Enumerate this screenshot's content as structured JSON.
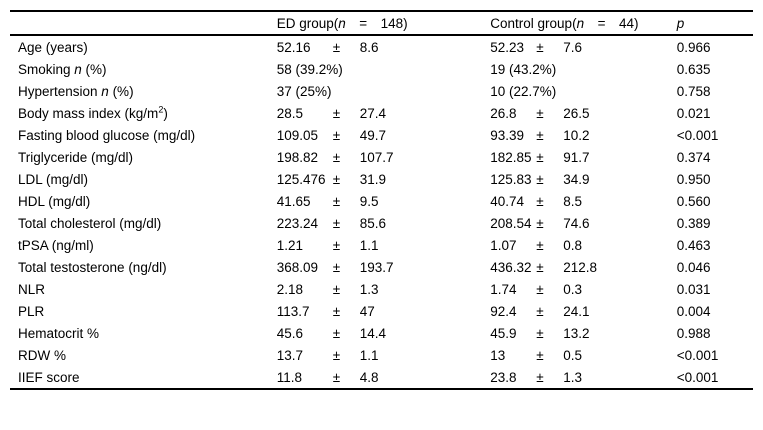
{
  "table": {
    "plus_minus": "±",
    "header": {
      "label": "",
      "ed": {
        "pre": "ED group(",
        "n": "n",
        "post": "  =  148)"
      },
      "control": {
        "pre": "Control group(",
        "n": "n",
        "post": "  =  44)"
      },
      "p": "p"
    },
    "rows": [
      {
        "label": {
          "pre": "Age (years)"
        },
        "ed": {
          "mean": "52.16",
          "sd": "8.6"
        },
        "control": {
          "mean": "52.23",
          "sd": "7.6"
        },
        "p": {
          "text": "0.966",
          "bold": false
        }
      },
      {
        "label": {
          "pre": "Smoking ",
          "it": "n",
          "post": " (%)"
        },
        "ed": {
          "text": "58 (39.2%)"
        },
        "control": {
          "text": "19 (43.2%)"
        },
        "p": {
          "text": "0.635",
          "bold": false
        }
      },
      {
        "label": {
          "pre": "Hypertension ",
          "it": "n",
          "post": " (%)"
        },
        "ed": {
          "text": "37 (25%)"
        },
        "control": {
          "text": "10 (22.7%)"
        },
        "p": {
          "text": "0.758",
          "bold": false
        }
      },
      {
        "label": {
          "pre": "Body mass index (kg/m",
          "sup": "2",
          "post": ")"
        },
        "ed": {
          "mean": "28.5",
          "sd": "27.4"
        },
        "control": {
          "mean": "26.8",
          "sd": "26.5"
        },
        "p": {
          "text": "0.021",
          "bold": true
        }
      },
      {
        "label": {
          "pre": "Fasting blood glucose (mg/dl)"
        },
        "ed": {
          "mean": "109.05",
          "sd": "49.7"
        },
        "control": {
          "mean": "93.39",
          "sd": "10.2"
        },
        "p": {
          "text": "<0.001",
          "bold": true
        }
      },
      {
        "label": {
          "pre": "Triglyceride (mg/dl)"
        },
        "ed": {
          "mean": "198.82",
          "sd": "107.7"
        },
        "control": {
          "mean": "182.85",
          "sd": "91.7"
        },
        "p": {
          "text": "0.374",
          "bold": false
        }
      },
      {
        "label": {
          "pre": "LDL (mg/dl)"
        },
        "ed": {
          "mean": "125.476",
          "sd": "31.9"
        },
        "control": {
          "mean": "125.83",
          "sd": "34.9"
        },
        "p": {
          "text": "0.950",
          "bold": false
        }
      },
      {
        "label": {
          "pre": "HDL (mg/dl)"
        },
        "ed": {
          "mean": "41.65",
          "sd": "9.5"
        },
        "control": {
          "mean": "40.74",
          "sd": "8.5"
        },
        "p": {
          "text": "0.560",
          "bold": false
        }
      },
      {
        "label": {
          "pre": "Total cholesterol (mg/dl)"
        },
        "ed": {
          "mean": "223.24",
          "sd": "85.6"
        },
        "control": {
          "mean": "208.54",
          "sd": "74.6"
        },
        "p": {
          "text": "0.389",
          "bold": false
        }
      },
      {
        "label": {
          "pre": "tPSA (ng/ml)"
        },
        "ed": {
          "mean": "1.21",
          "sd": "1.1"
        },
        "control": {
          "mean": "1.07",
          "sd": "0.8"
        },
        "p": {
          "text": "0.463",
          "bold": false
        }
      },
      {
        "label": {
          "pre": "Total testosterone (ng/dl)"
        },
        "ed": {
          "mean": "368.09",
          "sd": "193.7"
        },
        "control": {
          "mean": "436.32",
          "sd": "212.8"
        },
        "p": {
          "text": "0.046",
          "bold": true
        }
      },
      {
        "label": {
          "pre": "NLR"
        },
        "ed": {
          "mean": "2.18",
          "sd": "1.3"
        },
        "control": {
          "mean": "1.74",
          "sd": "0.3"
        },
        "p": {
          "text": "0.031",
          "bold": true
        }
      },
      {
        "label": {
          "pre": "PLR"
        },
        "ed": {
          "mean": "113.7",
          "sd": "47"
        },
        "control": {
          "mean": "92.4",
          "sd": "24.1"
        },
        "p": {
          "text": "0.004",
          "bold": true
        }
      },
      {
        "label": {
          "pre": "Hematocrit %"
        },
        "ed": {
          "mean": "45.6",
          "sd": "14.4"
        },
        "control": {
          "mean": "45.9",
          "sd": "13.2"
        },
        "p": {
          "text": "0.988",
          "bold": false
        }
      },
      {
        "label": {
          "pre": "RDW %"
        },
        "ed": {
          "mean": "13.7",
          "sd": "1.1"
        },
        "control": {
          "mean": "13",
          "sd": "0.5"
        },
        "p": {
          "text": "<0.001",
          "bold": true
        }
      },
      {
        "label": {
          "pre": "IIEF score"
        },
        "ed": {
          "mean": "11.8",
          "sd": "4.8"
        },
        "control": {
          "mean": "23.8",
          "sd": "1.3"
        },
        "p": {
          "text": "<0.001",
          "bold": true
        }
      }
    ]
  }
}
